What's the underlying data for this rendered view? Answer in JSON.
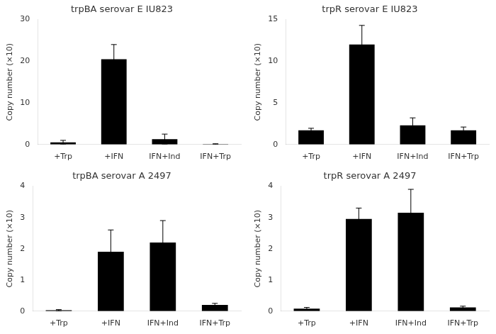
{
  "chart_data": [
    {
      "type": "bar",
      "title": "trpBA serovar E IU823",
      "ylabel": "Copy number (×10)",
      "categories": [
        "+Trp",
        "+IFN",
        "IFN+Ind",
        "IFN+Trp"
      ],
      "values": [
        0.5,
        20.5,
        1.3,
        0.1
      ],
      "errors": [
        0.5,
        3.5,
        1.2,
        0.08
      ],
      "color": "#000000",
      "ylim": [
        0,
        30
      ],
      "yticks": [
        0,
        10,
        20,
        30
      ],
      "grid": false
    },
    {
      "type": "bar",
      "title": "trpR serovar E IU823",
      "ylabel": "Copy number (×10)",
      "categories": [
        "+Trp",
        "+IFN",
        "IFN+Ind",
        "IFN+Trp"
      ],
      "values": [
        1.7,
        12.0,
        2.3,
        1.7
      ],
      "errors": [
        0.25,
        2.3,
        0.9,
        0.4
      ],
      "color": "#000000",
      "ylim": [
        0,
        15
      ],
      "yticks": [
        0,
        5,
        10,
        15
      ],
      "grid": false
    },
    {
      "type": "bar",
      "title": "trpBA serovar A 2497",
      "ylabel": "Copy number (×10)",
      "categories": [
        "+Trp",
        "+IFN",
        "IFN+Ind",
        "IFN+Trp"
      ],
      "values": [
        0.03,
        1.9,
        2.2,
        0.2
      ],
      "errors": [
        0.02,
        0.7,
        0.7,
        0.05
      ],
      "color": "#000000",
      "ylim": [
        0,
        4
      ],
      "yticks": [
        0,
        1,
        2,
        3,
        4
      ],
      "grid": false
    },
    {
      "type": "bar",
      "title": "trpR serovar A 2497",
      "ylabel": "Copy number (×10)",
      "categories": [
        "+Trp",
        "+IFN",
        "IFN+Ind",
        "IFN+Trp"
      ],
      "values": [
        0.08,
        2.95,
        3.15,
        0.12
      ],
      "errors": [
        0.04,
        0.35,
        0.75,
        0.04
      ],
      "color": "#000000",
      "ylim": [
        0,
        4
      ],
      "yticks": [
        0,
        1,
        2,
        3,
        4
      ],
      "grid": false
    }
  ]
}
